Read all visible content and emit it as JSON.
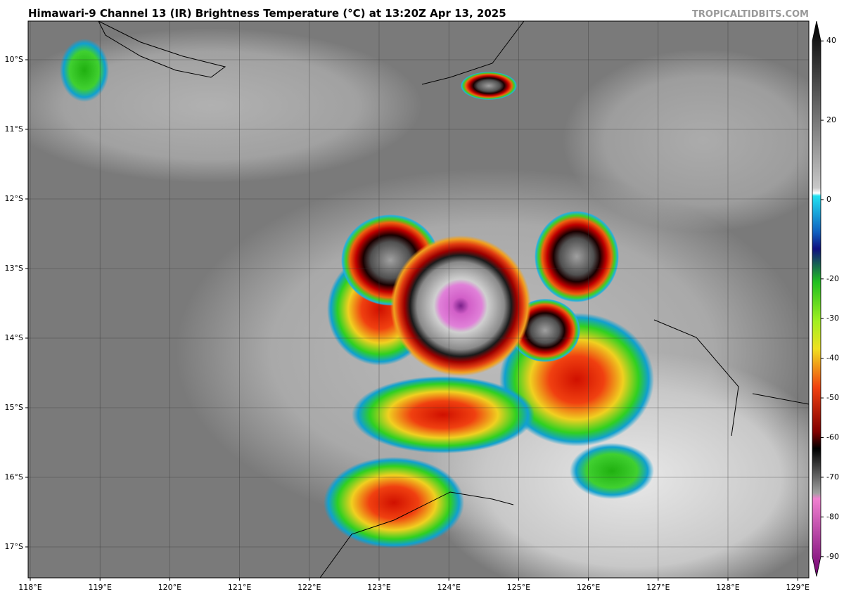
{
  "header": {
    "title": "Himawari-9 Channel 13 (IR) Brightness Temperature (°C) at 13:20Z Apr 13, 2025",
    "credit": "TROPICALTIDBITS.COM"
  },
  "map": {
    "lat_labels": [
      "10°S",
      "11°S",
      "12°S",
      "13°S",
      "14°S",
      "15°S",
      "16°S",
      "17°S"
    ],
    "lon_labels": [
      "118°E",
      "119°E",
      "120°E",
      "121°E",
      "122°E",
      "123°E",
      "124°E",
      "125°E",
      "126°E",
      "127°E",
      "128°E",
      "129°E"
    ]
  },
  "colorbar": {
    "lim": [
      -95,
      45
    ],
    "ticks": [
      40,
      20,
      0,
      -20,
      -30,
      -40,
      -50,
      -60,
      -70,
      -80,
      -90
    ]
  }
}
